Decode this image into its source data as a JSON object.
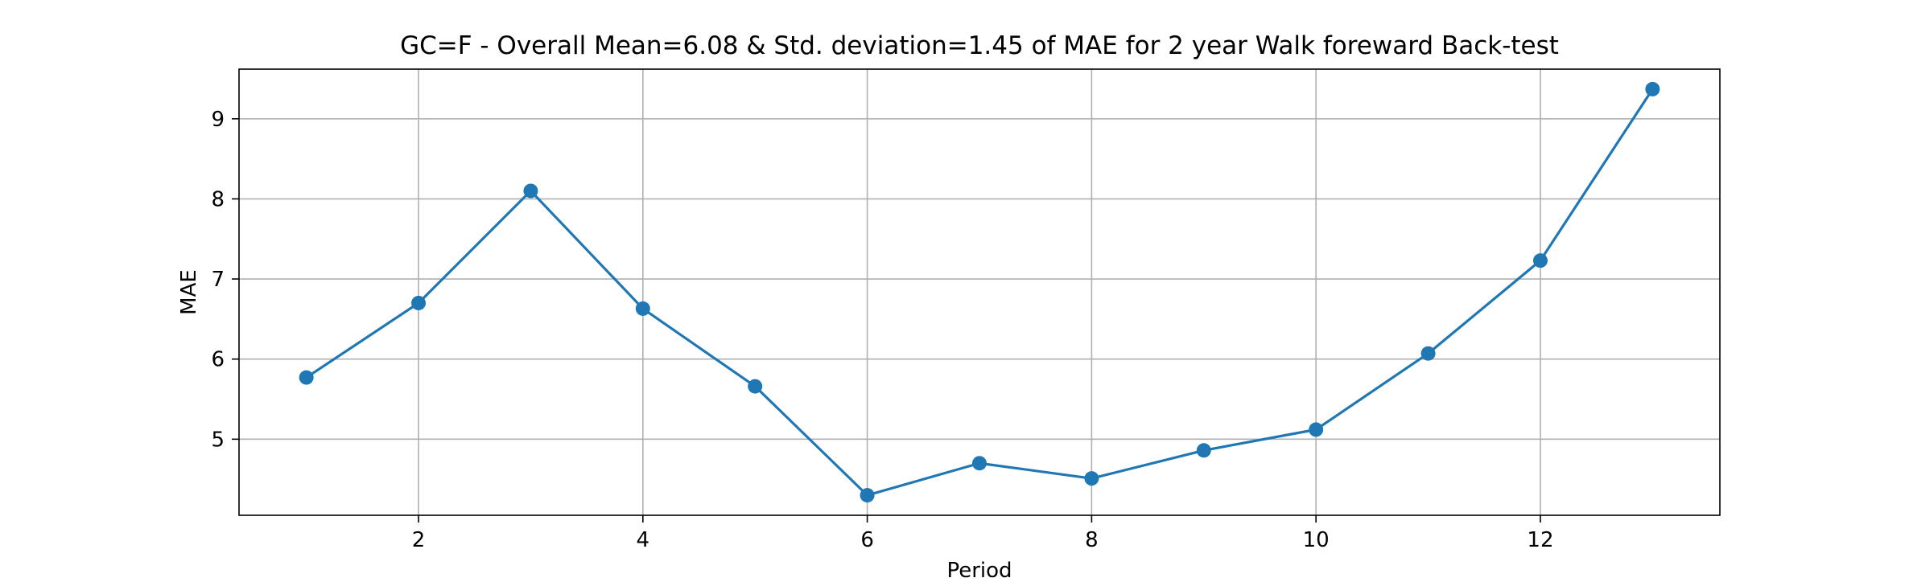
{
  "chart_data": {
    "type": "line",
    "title": "GC=F - Overall Mean=6.08 & Std. deviation=1.45 of MAE for 2 year Walk foreward Back-test",
    "xlabel": "Period",
    "ylabel": "MAE",
    "x": [
      1,
      2,
      3,
      4,
      5,
      6,
      7,
      8,
      9,
      10,
      11,
      12,
      13
    ],
    "series": [
      {
        "values": [
          5.77,
          6.7,
          8.1,
          6.63,
          5.66,
          4.3,
          4.7,
          4.51,
          4.86,
          5.12,
          6.07,
          7.23,
          9.37
        ]
      }
    ],
    "xlim": [
      0.4,
      13.6
    ],
    "ylim": [
      4.05,
      9.62
    ],
    "xticks": [
      2,
      4,
      6,
      8,
      10,
      12
    ],
    "yticks": [
      5,
      6,
      7,
      8,
      9
    ],
    "grid": true,
    "marker": "circle",
    "line_color": "#1f77b4",
    "grid_color": "#b0b0b0"
  }
}
